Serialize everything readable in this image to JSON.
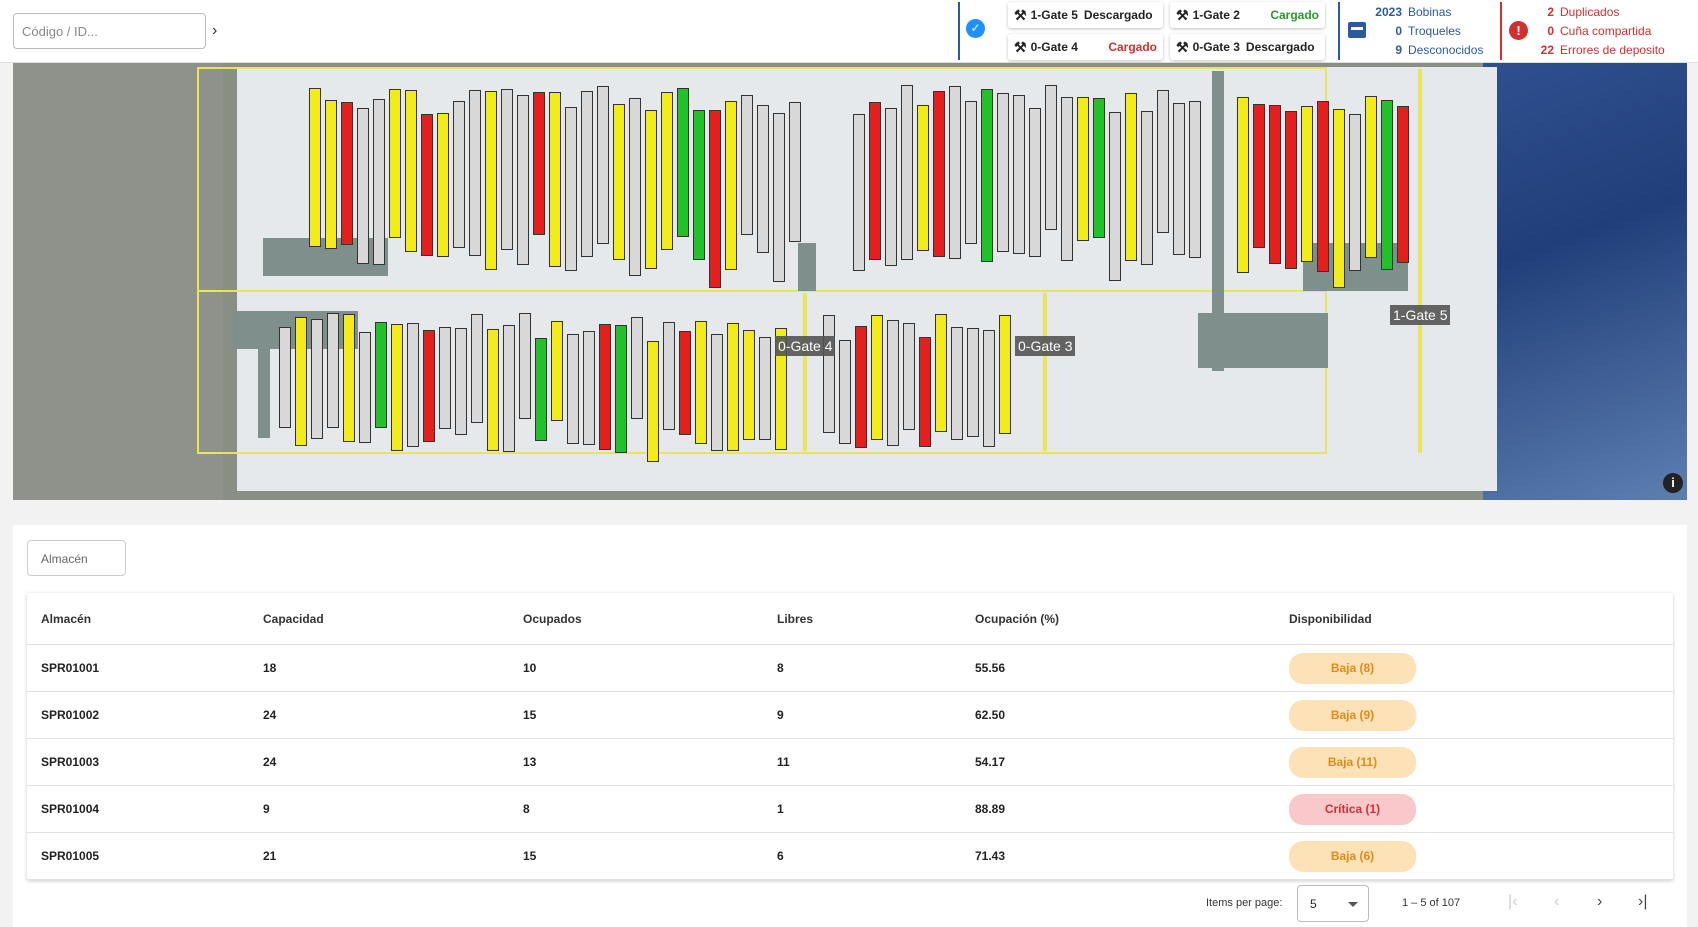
{
  "topbar": {
    "search_placeholder": "Código / ID...",
    "search_go": "›",
    "gates": [
      {
        "name": "1-Gate 5",
        "status": "Descargado"
      },
      {
        "name": "1-Gate 2",
        "status": "Cargado"
      },
      {
        "name": "0-Gate 4",
        "status": "Cargado"
      },
      {
        "name": "0-Gate 3",
        "status": "Descargado"
      }
    ],
    "inventory": [
      {
        "count": "2023",
        "label": "Bobinas"
      },
      {
        "count": "0",
        "label": "Troqueles"
      },
      {
        "count": "9",
        "label": "Desconocidos"
      }
    ],
    "errors": [
      {
        "count": "2",
        "label": "Duplicados"
      },
      {
        "count": "0",
        "label": "Cuña compartida"
      },
      {
        "count": "22",
        "label": "Errores de deposito"
      }
    ]
  },
  "map": {
    "gate_labels": [
      "0-Gate 4",
      "0-Gate 3",
      "1-Gate 5"
    ],
    "info": "i"
  },
  "table": {
    "filter_placeholder": "Almacén",
    "columns": [
      "Almacén",
      "Capacidad",
      "Ocupados",
      "Libres",
      "Ocupación (%)",
      "Disponibilidad"
    ],
    "rows": [
      {
        "almacen": "SPR01001",
        "capacidad": "18",
        "ocupados": "10",
        "libres": "8",
        "ocupacion": "55.56",
        "disponibilidad": "Baja (8)",
        "level": "low"
      },
      {
        "almacen": "SPR01002",
        "capacidad": "24",
        "ocupados": "15",
        "libres": "9",
        "ocupacion": "62.50",
        "disponibilidad": "Baja (9)",
        "level": "low"
      },
      {
        "almacen": "SPR01003",
        "capacidad": "24",
        "ocupados": "13",
        "libres": "11",
        "ocupacion": "54.17",
        "disponibilidad": "Baja (11)",
        "level": "low"
      },
      {
        "almacen": "SPR01004",
        "capacidad": "9",
        "ocupados": "8",
        "libres": "1",
        "ocupacion": "88.89",
        "disponibilidad": "Crítica (1)",
        "level": "crit"
      },
      {
        "almacen": "SPR01005",
        "capacidad": "21",
        "ocupados": "15",
        "libres": "6",
        "ocupacion": "71.43",
        "disponibilidad": "Baja (6)",
        "level": "low"
      }
    ]
  },
  "pagination": {
    "items_per_page_label": "Items per page:",
    "items_per_page": "5",
    "range": "1 – 5 of 107",
    "first": "|‹",
    "prev": "‹",
    "next": "›",
    "last": "›|"
  },
  "colors": {
    "ok": "#2a9a2a",
    "bad": "#d32f2f",
    "accent": "#1e90ff",
    "navy": "#2c5aa0",
    "rack_yellow": "#f3ea1c",
    "rack_green": "#22c12a",
    "rack_red": "#e4201e"
  }
}
